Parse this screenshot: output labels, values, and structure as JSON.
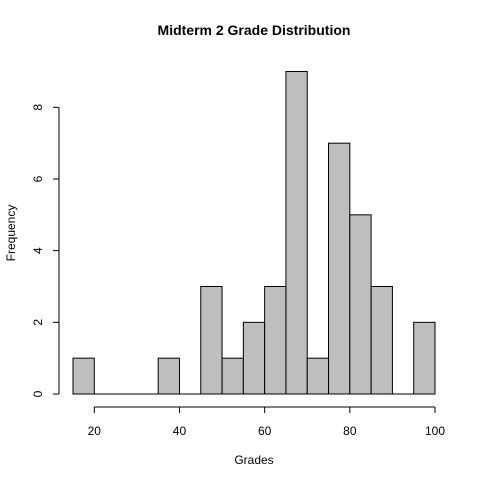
{
  "chart_data": {
    "type": "bar",
    "title": "Midterm 2 Grade Distribution",
    "xlabel": "Grades",
    "ylabel": "Frequency",
    "bin_edges": [
      15,
      20,
      25,
      30,
      35,
      40,
      45,
      50,
      55,
      60,
      65,
      70,
      75,
      80,
      85,
      90,
      95,
      100
    ],
    "values": [
      1,
      0,
      0,
      0,
      1,
      0,
      3,
      1,
      2,
      3,
      9,
      1,
      7,
      5,
      3,
      0,
      2
    ],
    "xlim": [
      15,
      100
    ],
    "ylim": [
      0,
      9
    ],
    "x_ticks": [
      "20",
      "40",
      "60",
      "80",
      "100"
    ],
    "y_ticks": [
      "0",
      "2",
      "4",
      "6",
      "8"
    ],
    "bar_color": "#bebebe",
    "grid": false,
    "legend": "none"
  }
}
